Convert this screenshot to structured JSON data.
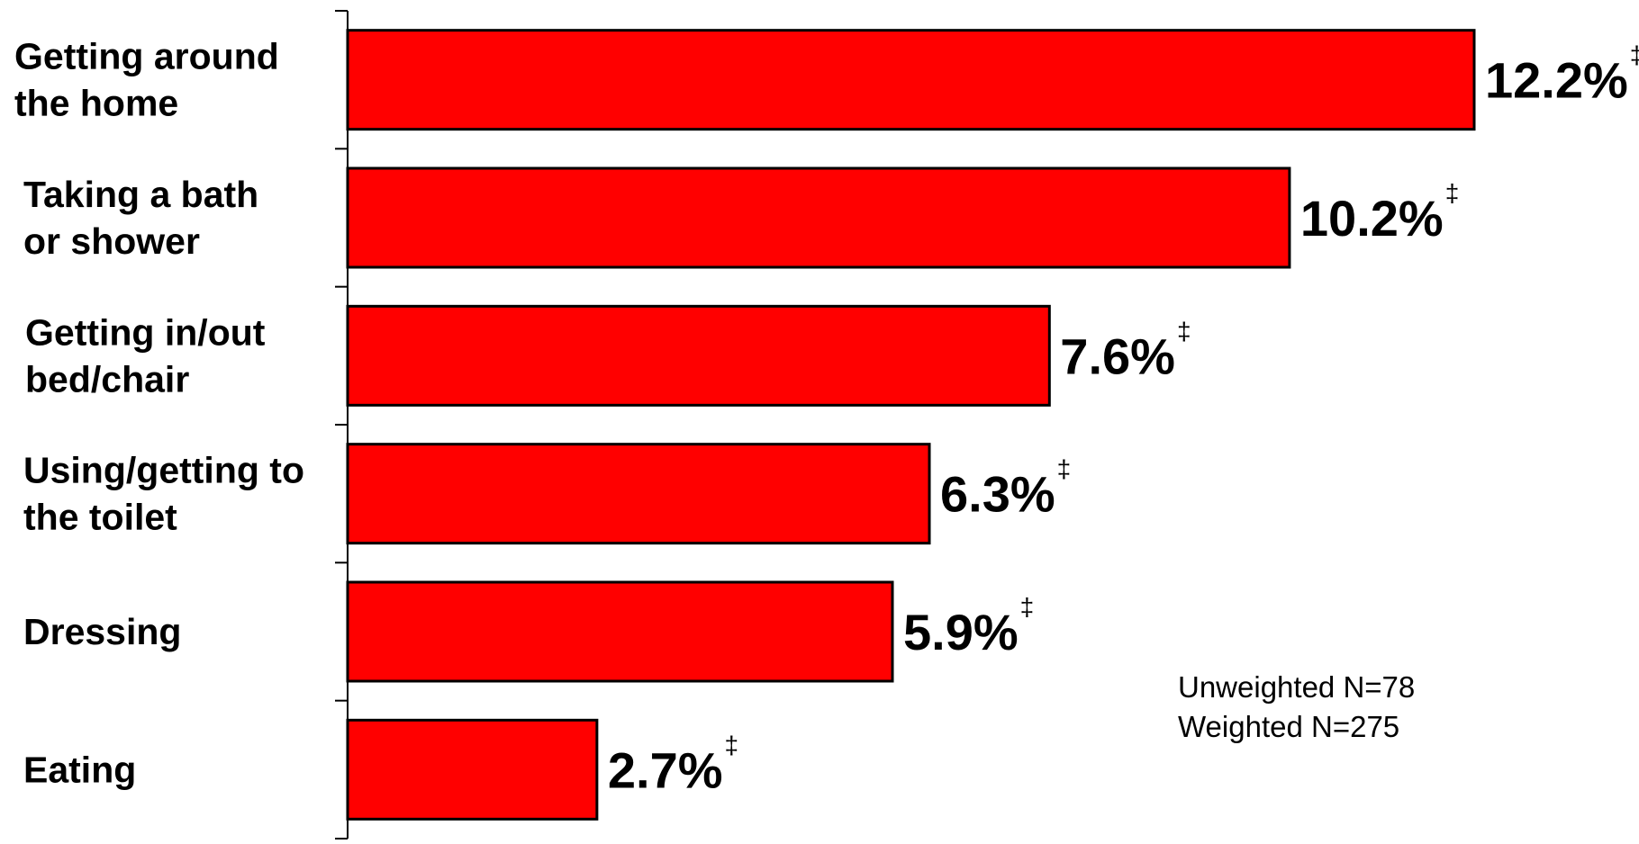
{
  "chart_data": {
    "type": "bar",
    "orientation": "horizontal",
    "categories": [
      [
        "Getting around",
        "the home"
      ],
      [
        "Taking a bath",
        "or shower"
      ],
      [
        "Getting in/out",
        "bed/chair"
      ],
      [
        "Using/getting to",
        "the toilet"
      ],
      [
        "Dressing"
      ],
      [
        "Eating"
      ]
    ],
    "values": [
      12.2,
      10.2,
      7.6,
      6.3,
      5.9,
      2.7
    ],
    "value_labels": [
      "12.2%",
      "10.2%",
      "7.6%",
      "6.3%",
      "5.9%",
      "2.7%"
    ],
    "value_mark": "‡",
    "bar_color": "#ff0000",
    "xlim": [
      0,
      12.2
    ],
    "grid": false,
    "title": "",
    "xlabel": "",
    "ylabel": ""
  },
  "note": {
    "unweighted": "Unweighted N=78",
    "weighted": "Weighted N=275"
  }
}
